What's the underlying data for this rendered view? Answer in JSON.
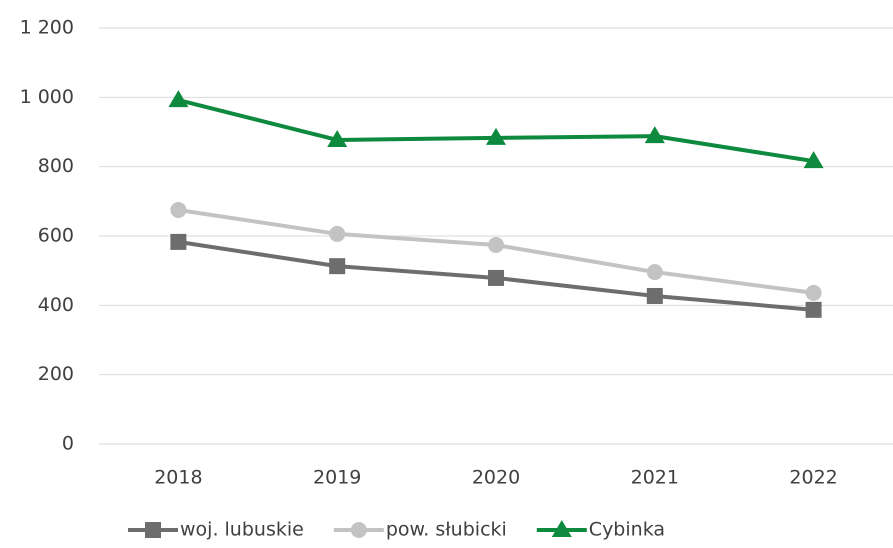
{
  "chart_data": {
    "type": "line",
    "categories": [
      "2018",
      "2019",
      "2020",
      "2021",
      "2022"
    ],
    "series": [
      {
        "name": "woj. lubuskie",
        "color": "#6d6d6d",
        "marker": "square",
        "values": [
          583,
          513,
          479,
          427,
          387
        ]
      },
      {
        "name": "pow. słubicki",
        "color": "#c3c3c3",
        "marker": "circle",
        "values": [
          675,
          606,
          574,
          496,
          436
        ]
      },
      {
        "name": "Cybinka",
        "color": "#0e8a3e",
        "marker": "triangle",
        "values": [
          992,
          877,
          883,
          888,
          816
        ]
      }
    ],
    "ylim": [
      0,
      1200
    ],
    "yticks": [
      0,
      200,
      400,
      600,
      800,
      {
        "value": 1000,
        "label": "1 000"
      },
      {
        "value": 1200,
        "label": "1 200"
      }
    ],
    "grid": true,
    "legend": "bottom"
  }
}
